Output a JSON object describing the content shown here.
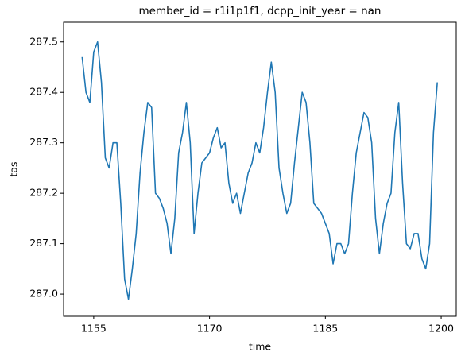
{
  "chart_data": {
    "type": "line",
    "title": "member_id = r1i1p1f1, dcpp_init_year = nan",
    "xlabel": "time",
    "ylabel": "tas",
    "x": [
      1153.5,
      1154,
      1154.5,
      1155,
      1155.5,
      1156,
      1156.5,
      1157,
      1157.5,
      1158,
      1158.5,
      1159,
      1159.5,
      1160,
      1160.5,
      1161,
      1161.5,
      1162,
      1162.5,
      1163,
      1163.5,
      1164,
      1164.5,
      1165,
      1165.5,
      1166,
      1166.5,
      1167,
      1167.5,
      1168,
      1168.5,
      1169,
      1169.5,
      1170,
      1170.5,
      1171,
      1171.5,
      1172,
      1172.5,
      1173,
      1173.5,
      1174,
      1174.5,
      1175,
      1175.5,
      1176,
      1176.5,
      1177,
      1177.5,
      1178,
      1178.5,
      1179,
      1179.5,
      1180,
      1180.5,
      1181,
      1181.5,
      1182,
      1182.5,
      1183,
      1183.5,
      1184,
      1184.5,
      1185,
      1185.5,
      1186,
      1186.5,
      1187,
      1187.5,
      1188,
      1188.5,
      1189,
      1189.5,
      1190,
      1190.5,
      1191,
      1191.5,
      1192,
      1192.5,
      1193,
      1193.5,
      1194,
      1194.5,
      1195,
      1195.5,
      1196,
      1196.5,
      1197,
      1197.5,
      1198,
      1198.5,
      1199,
      1199.5
    ],
    "series": [
      {
        "name": "tas",
        "color": "#1f77b4",
        "values": [
          287.47,
          287.4,
          287.38,
          287.48,
          287.5,
          287.42,
          287.27,
          287.25,
          287.3,
          287.3,
          287.18,
          287.03,
          286.99,
          287.05,
          287.12,
          287.24,
          287.32,
          287.38,
          287.37,
          287.2,
          287.19,
          287.17,
          287.14,
          287.08,
          287.15,
          287.28,
          287.32,
          287.38,
          287.3,
          287.12,
          287.2,
          287.26,
          287.27,
          287.28,
          287.31,
          287.33,
          287.29,
          287.3,
          287.22,
          287.18,
          287.2,
          287.16,
          287.2,
          287.24,
          287.26,
          287.3,
          287.28,
          287.33,
          287.4,
          287.46,
          287.4,
          287.25,
          287.2,
          287.16,
          287.18,
          287.26,
          287.33,
          287.4,
          287.38,
          287.3,
          287.18,
          287.17,
          287.16,
          287.14,
          287.12,
          287.06,
          287.1,
          287.1,
          287.08,
          287.1,
          287.2,
          287.28,
          287.32,
          287.36,
          287.35,
          287.3,
          287.15,
          287.08,
          287.14,
          287.18,
          287.2,
          287.32,
          287.38,
          287.22,
          287.1,
          287.09,
          287.12,
          287.12,
          287.07,
          287.05,
          287.1,
          287.32,
          287.42
        ]
      }
    ],
    "xlim": [
      1151.1,
      1201.95
    ],
    "xticks": [
      1155,
      1170,
      1185,
      1200
    ],
    "ylim": [
      286.956,
      287.539
    ],
    "yticks": [
      {
        "value": 287,
        "label": "287.0"
      },
      287.1,
      287.2,
      287.3,
      287.4,
      287.5
    ],
    "grid": false
  }
}
